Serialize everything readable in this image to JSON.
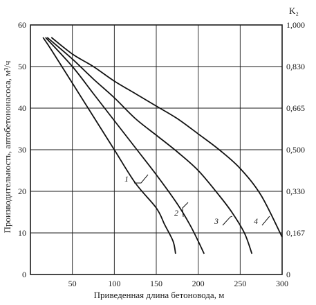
{
  "chart_data": {
    "type": "line",
    "xlabel": "Приведенная длина бетоновода, м",
    "ylabel": "Производительность, автобетононасоса, м³/ч",
    "y2label": "K₂",
    "xlim": [
      0,
      300
    ],
    "ylim": [
      0,
      60
    ],
    "x_ticks": [
      50,
      100,
      150,
      200,
      250,
      300
    ],
    "y_ticks": [
      0,
      10,
      20,
      30,
      40,
      50,
      60
    ],
    "y2_ticks": [
      "0",
      "0,167",
      "0,330",
      "0,500",
      "0,665",
      "0,830",
      "1,000"
    ],
    "grid": true,
    "series": [
      {
        "name": "1",
        "x": [
          15,
          25,
          50,
          75,
          100,
          125,
          150,
          160,
          170,
          173
        ],
        "y": [
          57,
          54,
          46,
          38,
          30,
          22,
          16,
          12,
          8,
          5
        ]
      },
      {
        "name": "2",
        "x": [
          18,
          50,
          75,
          100,
          125,
          150,
          175,
          190,
          200,
          207
        ],
        "y": [
          57,
          50,
          43.5,
          37,
          30.5,
          24,
          17,
          12,
          8,
          5
        ]
      },
      {
        "name": "3",
        "x": [
          20,
          50,
          75,
          100,
          125,
          150,
          175,
          200,
          225,
          240,
          255,
          264
        ],
        "y": [
          57,
          51.8,
          47,
          42.5,
          37.5,
          33.5,
          29.5,
          25,
          19,
          15,
          10,
          5
        ]
      },
      {
        "name": "4",
        "x": [
          25,
          50,
          75,
          100,
          125,
          150,
          175,
          200,
          225,
          250,
          275,
          300
        ],
        "y": [
          57,
          53,
          50,
          46.5,
          43.5,
          40.5,
          37.5,
          33.8,
          30,
          25.5,
          19,
          9
        ]
      }
    ]
  }
}
